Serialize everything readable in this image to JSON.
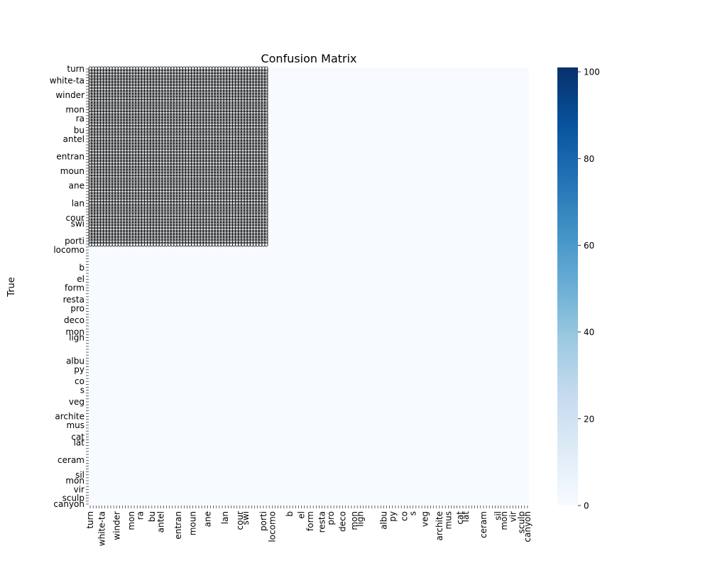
{
  "chart_data": {
    "type": "heatmap",
    "title": "Confusion Matrix",
    "ylabel": "True",
    "xlabel": "",
    "colormap": "Blues",
    "colorbar": {
      "min": 0,
      "max": 101,
      "ticks": [
        0,
        20,
        40,
        60,
        80,
        100
      ],
      "colors": [
        "#f7fbff",
        "#deebf7",
        "#c6dbef",
        "#9ecae1",
        "#6baed6",
        "#4292c6",
        "#2171b5",
        "#08519c",
        "#08306b"
      ]
    },
    "annotation_color": "#262626",
    "n_classes": 150,
    "n_annotated": 61,
    "annotated_value": 0,
    "legible_labels": [
      "turn",
      "white-ta",
      "winder",
      "mon",
      "ra",
      "bu",
      "antel",
      "entran",
      "moun",
      "ane",
      "lan",
      "cour",
      "swi",
      "porti",
      "locomo",
      "b",
      "el",
      "form",
      "resta",
      "pro",
      "deco",
      "mon",
      "ligh",
      "albu",
      "py",
      "co",
      "s",
      "veg",
      "archite",
      "mus",
      "cat",
      "lat",
      "ceram",
      "sil",
      "mon",
      "vir",
      "sculp",
      "canyon"
    ],
    "legible_label_rows": [
      0,
      4,
      9,
      14,
      17,
      21,
      24,
      30,
      35,
      40,
      46,
      51,
      53,
      59,
      62,
      68,
      72,
      75,
      79,
      82,
      86,
      90,
      92,
      100,
      103,
      107,
      110,
      114,
      119,
      122,
      126,
      128,
      134,
      139,
      141,
      144,
      147,
      149
    ]
  }
}
